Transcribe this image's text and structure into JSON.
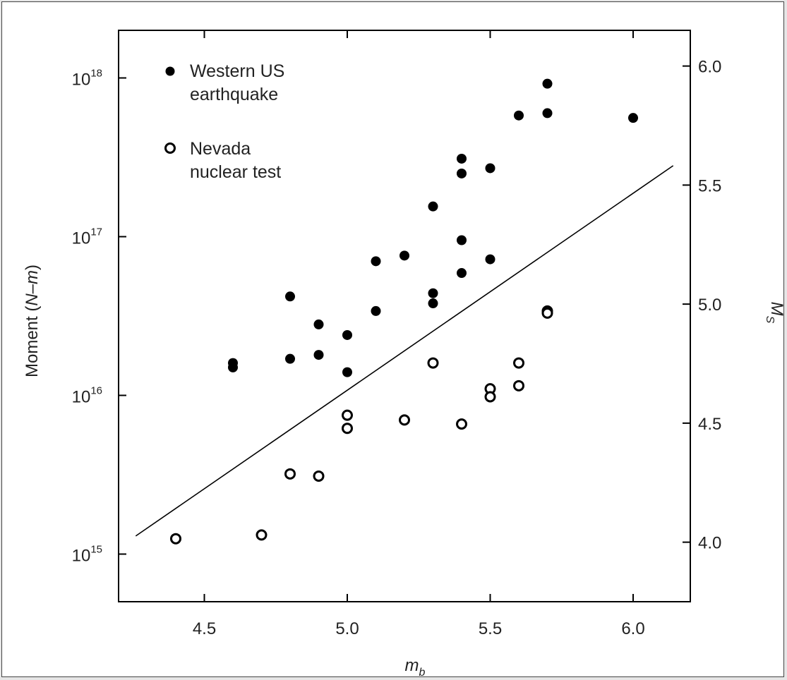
{
  "chart_data": {
    "type": "scatter",
    "title": "",
    "xlabel": {
      "base": "m",
      "sub": "b"
    },
    "ylabel": {
      "prefix": "Moment (",
      "italic": "N–m",
      "suffix": ")"
    },
    "y2label": {
      "base": "M",
      "sub": "S"
    },
    "x_range": [
      4.2,
      6.2
    ],
    "y_range_log10": [
      14.7,
      18.3
    ],
    "y2_range": [
      3.75,
      6.15
    ],
    "x_ticks": [
      4.5,
      5.0,
      5.5,
      6.0
    ],
    "x_tick_labels": [
      "4.5",
      "5.0",
      "5.5",
      "6.0"
    ],
    "y_ticks": [
      {
        "exp": 15,
        "base": "10",
        "sup": "15"
      },
      {
        "exp": 16,
        "base": "10",
        "sup": "16"
      },
      {
        "exp": 17,
        "base": "10",
        "sup": "17"
      },
      {
        "exp": 18,
        "base": "10",
        "sup": "18"
      }
    ],
    "y2_ticks": [
      4.0,
      4.5,
      5.0,
      5.5,
      6.0
    ],
    "y2_tick_labels": [
      "4.0",
      "4.5",
      "5.0",
      "5.5",
      "6.0"
    ],
    "grid": false,
    "legend_position": "top-left",
    "series": [
      {
        "name": "Western US earthquake",
        "name_lines": [
          "Western US",
          "earthquake"
        ],
        "marker": "filled-circle",
        "color": "#000000",
        "points": [
          [
            4.6,
            1.6e+16
          ],
          [
            4.6,
            1.5e+16
          ],
          [
            4.8,
            4.2e+16
          ],
          [
            4.8,
            1.7e+16
          ],
          [
            4.9,
            2.8e+16
          ],
          [
            4.9,
            1.8e+16
          ],
          [
            5.0,
            2.4e+16
          ],
          [
            5.0,
            1.4e+16
          ],
          [
            5.1,
            7e+16
          ],
          [
            5.1,
            3.4e+16
          ],
          [
            5.2,
            7.6e+16
          ],
          [
            5.3,
            1.55e+17
          ],
          [
            5.3,
            4.4e+16
          ],
          [
            5.3,
            3.8e+16
          ],
          [
            5.4,
            3.1e+17
          ],
          [
            5.4,
            2.5e+17
          ],
          [
            5.4,
            9.5e+16
          ],
          [
            5.4,
            5.9e+16
          ],
          [
            5.5,
            2.7e+17
          ],
          [
            5.5,
            7.2e+16
          ],
          [
            5.6,
            5.8e+17
          ],
          [
            5.7,
            9.2e+17
          ],
          [
            5.7,
            6e+17
          ],
          [
            6.0,
            5.6e+17
          ]
        ]
      },
      {
        "name": "Nevada nuclear test",
        "name_lines": [
          "Nevada",
          "nuclear test"
        ],
        "marker": "open-circle",
        "color": "#000000",
        "points": [
          [
            4.4,
            1250000000000000.0
          ],
          [
            4.7,
            1320000000000000.0
          ],
          [
            4.8,
            3200000000000000.0
          ],
          [
            4.9,
            3100000000000000.0
          ],
          [
            5.0,
            7500000000000000.0
          ],
          [
            5.0,
            6200000000000000.0
          ],
          [
            5.2,
            7000000000000000.0
          ],
          [
            5.3,
            1.6e+16
          ],
          [
            5.4,
            6600000000000000.0
          ],
          [
            5.5,
            1.1e+16
          ],
          [
            5.5,
            9800000000000000.0
          ],
          [
            5.6,
            1.6e+16
          ],
          [
            5.6,
            1.15e+16
          ],
          [
            5.7,
            3.4e+16
          ],
          [
            5.7,
            3.3e+16
          ]
        ]
      }
    ],
    "line": {
      "x": [
        4.26,
        6.14
      ],
      "y": [
        1300000000000000.0,
        2.8e+17
      ]
    }
  }
}
